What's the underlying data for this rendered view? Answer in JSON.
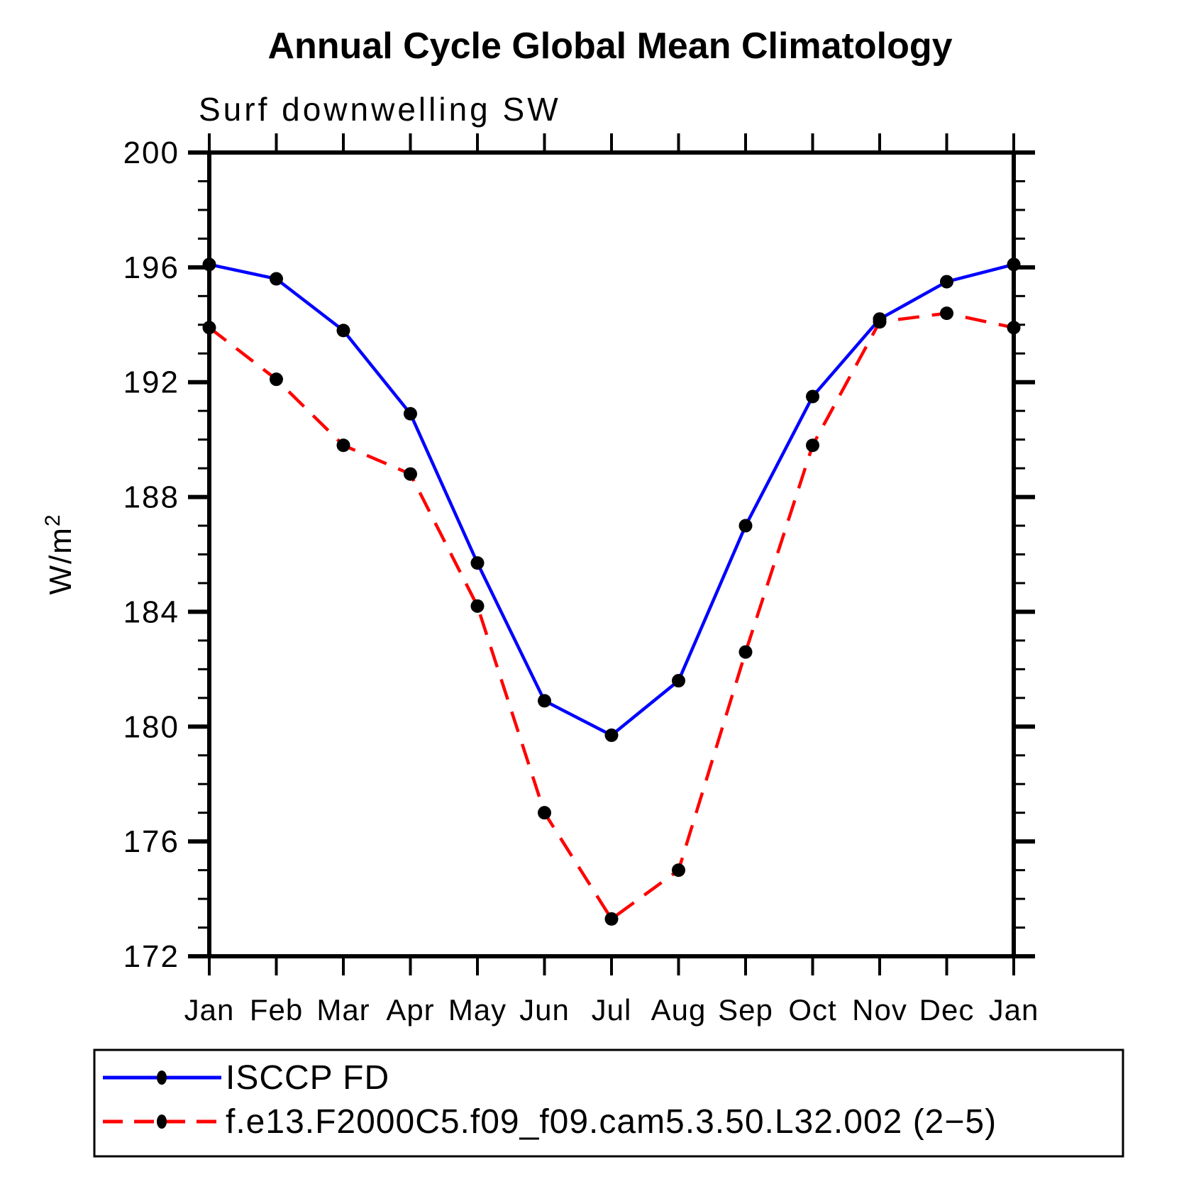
{
  "chart_data": {
    "type": "line",
    "title": "Annual Cycle Global Mean Climatology",
    "subtitle": "Surf downwelling SW",
    "ylabel": "W/m²",
    "ylabel_base": "W/m",
    "ylabel_exponent": "2",
    "xlabel": "",
    "categories": [
      "Jan",
      "Feb",
      "Mar",
      "Apr",
      "May",
      "Jun",
      "Jul",
      "Aug",
      "Sep",
      "Oct",
      "Nov",
      "Dec",
      "Jan"
    ],
    "ylim": [
      172,
      200
    ],
    "ytick_major_interval": 4,
    "ytick_minor_interval": 1,
    "ytick_labels": [
      "172",
      "176",
      "180",
      "184",
      "188",
      "192",
      "196",
      "200"
    ],
    "grid": false,
    "legend_position": "bottom-left-box",
    "axis_color": "#000000",
    "marker_color": "#000000",
    "series": [
      {
        "name": "ISCCP FD",
        "color": "#0000ff",
        "line_style": "solid",
        "marker": "filled-circle",
        "values": [
          196.1,
          195.6,
          193.8,
          190.9,
          185.7,
          180.9,
          179.7,
          181.6,
          187.0,
          191.5,
          194.2,
          195.5,
          196.1
        ]
      },
      {
        "name": "f.e13.F2000C5.f09_f09.cam5.3.50.L32.002 (2−5)",
        "color": "#ff0000",
        "line_style": "dashed",
        "marker": "filled-circle",
        "values": [
          193.9,
          192.1,
          189.8,
          188.8,
          184.2,
          177.0,
          173.3,
          175.0,
          182.6,
          189.8,
          194.1,
          194.4,
          193.9
        ]
      }
    ]
  }
}
